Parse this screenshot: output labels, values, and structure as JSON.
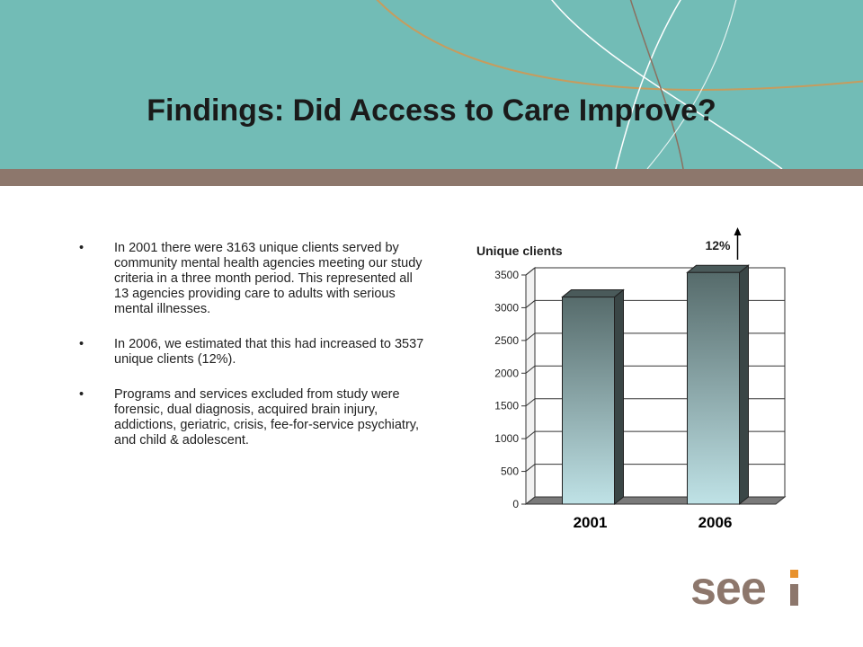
{
  "slide": {
    "title": "Findings: Did Access to Care Improve?",
    "bullet_symbol": "•",
    "bullets": [
      "In 2001 there were 3163 unique clients served by community mental health agencies meeting our study criteria in a three month period.  This represented all 13 agencies providing care to adults with serious mental illnesses.",
      "In 2006, we estimated that this had increased to 3537 unique clients (12%).",
      "Programs and services excluded from study were forensic, dual diagnosis, acquired brain injury, addictions, geriatric, crisis, fee-for-service psychiatry, and child & adolescent."
    ],
    "logo_text": "seei",
    "colors": {
      "header": "#72bcb6",
      "band": "#8d776c",
      "logo": "#8d776c",
      "logo_accent": "#e8922e"
    }
  },
  "chart_data": {
    "type": "bar",
    "title": "Unique clients",
    "categories": [
      "2001",
      "2006"
    ],
    "values": [
      3163,
      3537
    ],
    "ylim": [
      0,
      3500
    ],
    "yticks": [
      "0",
      "500",
      "1000",
      "1500",
      "2000",
      "2500",
      "3000",
      "3500"
    ],
    "grid": true,
    "annotation": "12%",
    "bar_gradient": [
      "#566b6b",
      "#bfe2e6"
    ]
  }
}
